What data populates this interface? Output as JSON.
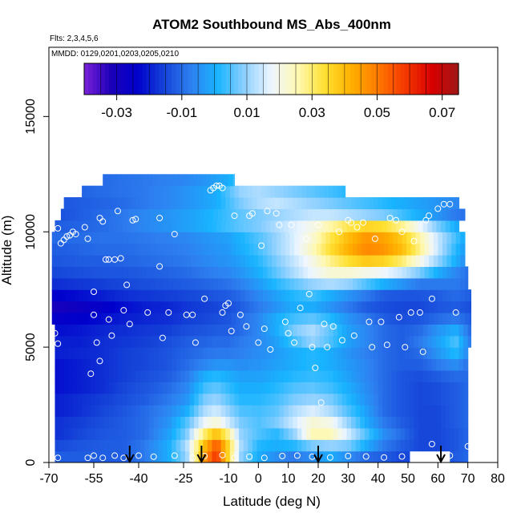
{
  "chart_data": {
    "type": "heatmap",
    "title": "ATOM2 Southbound MS_Abs_400nm",
    "flights_label": "Flts: 2,3,4,5,6",
    "dates_label": "MMDD: 0129,0201,0203,0205,0210",
    "xlabel": "Latitude (deg N)",
    "ylabel": "Altitude (m)",
    "xlim": [
      -70,
      80
    ],
    "ylim": [
      0,
      18000
    ],
    "x_ticks": [
      -70,
      -55,
      -40,
      -25,
      -10,
      0,
      10,
      20,
      30,
      40,
      50,
      60,
      70,
      80
    ],
    "y_ticks": [
      0,
      5000,
      10000,
      15000
    ],
    "colorbar": {
      "range": [
        -0.04,
        0.075
      ],
      "ticks": [
        -0.03,
        -0.01,
        0.01,
        0.03,
        0.05,
        0.07
      ],
      "tick_labels": [
        "-0.03",
        "-0.01",
        "0.01",
        "0.03",
        "0.05",
        "0.07"
      ],
      "colors": [
        "#7b22d8",
        "#1c00b8",
        "#0000cc",
        "#1544d8",
        "#2e80f0",
        "#18b4ff",
        "#8ed0ff",
        "#eef6ff",
        "#fff8b0",
        "#ffe030",
        "#ffb000",
        "#ff7800",
        "#f53800",
        "#d80000",
        "#a01818"
      ]
    },
    "field": {
      "lat": [
        -68,
        -60,
        -52,
        -45,
        -38,
        -30,
        -24,
        -18,
        -14,
        -10,
        -6,
        0,
        6,
        12,
        18,
        24,
        30,
        36,
        42,
        48,
        54,
        60,
        66,
        71
      ],
      "alt": [
        250,
        750,
        1250,
        1750,
        2250,
        2750,
        3250,
        3750,
        4250,
        4750,
        5250,
        5750,
        6250,
        6750,
        7250,
        7750,
        8250,
        8750,
        9250,
        9750,
        10250,
        10750,
        11250,
        11750,
        12250
      ],
      "rows": [
        [
          -0.012,
          -0.012,
          -0.012,
          -0.012,
          -0.008,
          0.0,
          0.01,
          0.045,
          0.06,
          0.035,
          0.01,
          0.0,
          -0.005,
          -0.008,
          -0.005,
          0.0,
          -0.005,
          -0.01,
          -0.012,
          -0.015,
          -0.015,
          -0.015,
          -0.012,
          -0.01
        ],
        [
          -0.015,
          -0.013,
          -0.012,
          -0.012,
          -0.008,
          0.0,
          0.012,
          0.04,
          0.055,
          0.035,
          0.012,
          0.002,
          0.0,
          0.002,
          0.008,
          0.01,
          0.008,
          0.0,
          -0.008,
          -0.012,
          -0.015,
          -0.015,
          -0.013,
          -0.01
        ],
        [
          -0.018,
          -0.015,
          -0.013,
          -0.012,
          -0.01,
          -0.002,
          0.008,
          0.03,
          0.04,
          0.028,
          0.01,
          0.005,
          0.002,
          0.01,
          0.025,
          0.025,
          0.015,
          0.005,
          -0.005,
          -0.01,
          -0.015,
          -0.015,
          -0.013,
          -0.01
        ],
        [
          -0.018,
          -0.016,
          -0.014,
          -0.012,
          -0.01,
          -0.004,
          0.005,
          0.018,
          0.022,
          0.015,
          0.008,
          0.005,
          0.008,
          0.015,
          0.022,
          0.02,
          0.01,
          0.0,
          -0.008,
          -0.012,
          -0.015,
          -0.015,
          -0.012,
          -0.01
        ],
        [
          -0.02,
          -0.018,
          -0.015,
          -0.013,
          -0.01,
          -0.006,
          0.0,
          0.012,
          0.015,
          0.01,
          0.005,
          0.004,
          0.006,
          0.012,
          0.016,
          0.012,
          0.005,
          -0.002,
          -0.01,
          -0.013,
          -0.015,
          -0.015,
          -0.012,
          -0.01
        ],
        [
          -0.02,
          -0.018,
          -0.016,
          -0.014,
          -0.012,
          -0.008,
          -0.004,
          0.008,
          0.01,
          0.006,
          0.002,
          0.002,
          0.004,
          0.008,
          0.01,
          0.008,
          0.002,
          -0.004,
          -0.01,
          -0.013,
          -0.015,
          -0.014,
          -0.012,
          -0.01
        ],
        [
          -0.022,
          -0.02,
          -0.018,
          -0.015,
          -0.013,
          -0.01,
          -0.006,
          0.004,
          0.006,
          0.003,
          0.0,
          0.0,
          0.002,
          0.005,
          0.006,
          0.004,
          0.0,
          -0.005,
          -0.01,
          -0.013,
          -0.015,
          -0.014,
          -0.012,
          -0.01
        ],
        [
          -0.022,
          -0.02,
          -0.018,
          -0.016,
          -0.014,
          -0.012,
          -0.008,
          0.0,
          0.002,
          0.0,
          -0.002,
          -0.002,
          0.0,
          0.002,
          0.003,
          0.002,
          -0.002,
          -0.006,
          -0.01,
          -0.013,
          -0.014,
          -0.012,
          -0.01,
          -0.01
        ],
        [
          -0.022,
          -0.02,
          -0.018,
          -0.016,
          -0.015,
          -0.013,
          -0.01,
          -0.006,
          -0.004,
          -0.004,
          -0.005,
          -0.004,
          -0.002,
          0.0,
          0.002,
          0.0,
          -0.003,
          -0.006,
          -0.01,
          -0.012,
          -0.012,
          -0.008,
          -0.005,
          -0.01
        ],
        [
          -0.02,
          -0.019,
          -0.018,
          -0.016,
          -0.015,
          -0.013,
          -0.011,
          -0.009,
          -0.008,
          -0.008,
          -0.007,
          -0.005,
          -0.003,
          0.0,
          0.002,
          0.0,
          -0.004,
          -0.007,
          -0.01,
          -0.012,
          -0.01,
          -0.004,
          0.002,
          -0.008
        ],
        [
          -0.02,
          -0.02,
          -0.018,
          -0.017,
          -0.016,
          -0.014,
          -0.012,
          -0.011,
          -0.01,
          -0.01,
          -0.008,
          -0.006,
          -0.002,
          0.004,
          0.01,
          0.005,
          -0.002,
          -0.006,
          -0.01,
          -0.012,
          -0.008,
          -0.002,
          0.005,
          -0.008
        ],
        [
          -0.022,
          -0.021,
          -0.019,
          -0.018,
          -0.017,
          -0.016,
          -0.014,
          -0.013,
          -0.012,
          -0.012,
          -0.01,
          -0.006,
          0.0,
          0.008,
          0.012,
          0.006,
          -0.002,
          -0.006,
          -0.01,
          -0.012,
          -0.01,
          -0.004,
          0.0,
          -0.01
        ],
        [
          -0.025,
          -0.024,
          -0.022,
          -0.02,
          -0.019,
          -0.018,
          -0.016,
          -0.015,
          -0.014,
          -0.013,
          -0.01,
          -0.006,
          0.0,
          0.004,
          0.006,
          0.002,
          -0.004,
          -0.008,
          -0.012,
          -0.014,
          -0.013,
          -0.01,
          -0.008,
          -0.012
        ],
        [
          -0.03,
          -0.028,
          -0.025,
          -0.022,
          -0.02,
          -0.019,
          -0.017,
          -0.016,
          -0.015,
          -0.014,
          -0.012,
          -0.008,
          -0.004,
          0.0,
          0.0,
          -0.004,
          -0.008,
          -0.012,
          -0.014,
          -0.015,
          -0.015,
          -0.013,
          -0.012,
          -0.014
        ],
        [
          -0.024,
          -0.022,
          -0.02,
          -0.018,
          -0.017,
          -0.016,
          -0.015,
          -0.014,
          -0.013,
          -0.012,
          -0.01,
          -0.006,
          -0.002,
          0.002,
          0.004,
          0.0,
          -0.004,
          -0.008,
          -0.012,
          -0.013,
          -0.013,
          -0.012,
          -0.01,
          -0.012
        ],
        [
          -0.018,
          -0.017,
          -0.016,
          -0.015,
          -0.014,
          -0.013,
          -0.012,
          -0.011,
          -0.01,
          -0.009,
          -0.007,
          -0.003,
          0.002,
          0.006,
          0.01,
          0.012,
          0.01,
          0.005,
          0.0,
          -0.004,
          -0.008,
          -0.008,
          -0.008,
          -0.01
        ],
        [
          -0.015,
          -0.014,
          -0.013,
          -0.013,
          -0.012,
          -0.011,
          -0.01,
          -0.008,
          -0.007,
          -0.006,
          -0.004,
          0.0,
          0.006,
          0.012,
          0.018,
          0.022,
          0.022,
          0.02,
          0.018,
          0.014,
          0.008,
          0.0,
          -0.006,
          -0.01
        ],
        [
          -0.013,
          -0.012,
          -0.012,
          -0.011,
          -0.01,
          -0.009,
          -0.008,
          -0.006,
          -0.005,
          -0.004,
          -0.002,
          0.002,
          0.008,
          0.014,
          0.02,
          0.028,
          0.034,
          0.038,
          0.036,
          0.03,
          0.02,
          0.01,
          0.0,
          -0.008
        ],
        [
          -0.012,
          -0.011,
          -0.01,
          -0.01,
          -0.009,
          -0.008,
          -0.007,
          -0.005,
          -0.004,
          -0.003,
          0.0,
          0.004,
          0.01,
          0.016,
          0.024,
          0.034,
          0.042,
          0.048,
          0.046,
          0.04,
          0.028,
          0.014,
          0.002,
          -0.006
        ],
        [
          -0.01,
          -0.01,
          -0.009,
          -0.009,
          -0.008,
          -0.007,
          -0.006,
          -0.004,
          -0.003,
          -0.002,
          0.001,
          0.005,
          0.01,
          0.016,
          0.022,
          0.032,
          0.04,
          0.046,
          0.044,
          0.038,
          0.026,
          0.014,
          0.004,
          -0.004
        ],
        [
          -0.012,
          -0.011,
          -0.01,
          -0.008,
          -0.006,
          -0.004,
          -0.002,
          0.0,
          0.002,
          0.004,
          0.006,
          0.008,
          0.012,
          0.016,
          0.02,
          0.026,
          0.032,
          0.036,
          0.034,
          0.028,
          0.018,
          0.008,
          0.0,
          -0.006
        ],
        [
          -0.014,
          -0.012,
          -0.01,
          -0.008,
          -0.006,
          -0.004,
          -0.002,
          0.0,
          0.002,
          0.004,
          0.006,
          0.008,
          0.01,
          0.012,
          0.014,
          0.014,
          0.012,
          0.01,
          0.008,
          0.004,
          0.0,
          -0.004,
          -0.008,
          -0.01
        ],
        [
          -0.013,
          -0.012,
          -0.011,
          -0.01,
          -0.008,
          -0.006,
          -0.004,
          -0.002,
          0.0,
          0.004,
          0.008,
          0.012,
          0.014,
          0.012,
          0.01,
          0.008,
          0.006,
          0.004,
          0.002,
          0.0,
          -0.002,
          -0.004,
          -0.006,
          -0.008
        ],
        [
          -0.012,
          -0.011,
          -0.01,
          -0.009,
          -0.008,
          -0.006,
          -0.004,
          -0.002,
          0.0,
          0.005,
          0.01,
          0.012,
          0.01,
          0.008,
          0.006,
          0.004,
          0.002,
          0.0,
          -0.002,
          -0.004,
          -0.006,
          -0.008,
          -0.01,
          -0.012
        ],
        [
          -0.012,
          -0.011,
          -0.01,
          -0.009,
          -0.008,
          -0.007,
          -0.006,
          -0.004,
          -0.002,
          0.0,
          0.006,
          0.01,
          0.008,
          0.006,
          0.004,
          0.002,
          0.0,
          -0.002,
          -0.004,
          -0.006,
          -0.008,
          -0.01,
          -0.012,
          -0.012
        ]
      ],
      "coverage": [
        [
          -68,
          70
        ],
        [
          -68,
          70
        ],
        [
          -68,
          70
        ],
        [
          -68,
          70
        ],
        [
          -68,
          70
        ],
        [
          -68,
          70
        ],
        [
          -68,
          70
        ],
        [
          -68,
          70
        ],
        [
          -68,
          70
        ],
        [
          -68,
          70
        ],
        [
          -68,
          71
        ],
        [
          -68,
          71
        ],
        [
          -69,
          71
        ],
        [
          -69,
          71
        ],
        [
          -69,
          71
        ],
        [
          -69,
          70
        ],
        [
          -69,
          70
        ],
        [
          -69,
          69
        ],
        [
          -69,
          69
        ],
        [
          -69,
          69
        ],
        [
          -68,
          67
        ],
        [
          -66,
          69
        ],
        [
          -65,
          67
        ],
        [
          -59,
          29
        ],
        [
          -52,
          -8
        ]
      ],
      "low_gap_lat": [
        50,
        64
      ],
      "low_gap_alt": [
        0,
        400
      ]
    },
    "sample_points": [
      [
        -68,
        5600
      ],
      [
        -67,
        5150
      ],
      [
        -66,
        9500
      ],
      [
        -65,
        9650
      ],
      [
        -64,
        9800
      ],
      [
        -63,
        9850
      ],
      [
        -62,
        10000
      ],
      [
        -61,
        9900
      ],
      [
        -67,
        10150
      ],
      [
        -58,
        10200
      ],
      [
        -57,
        9700
      ],
      [
        -56,
        3850
      ],
      [
        -55,
        6400
      ],
      [
        -55,
        7400
      ],
      [
        -54,
        5200
      ],
      [
        -53,
        4400
      ],
      [
        -53,
        10600
      ],
      [
        -52,
        10450
      ],
      [
        -51,
        8800
      ],
      [
        -50,
        6200
      ],
      [
        -50,
        8800
      ],
      [
        -49,
        5500
      ],
      [
        -48,
        8800
      ],
      [
        -47,
        10900
      ],
      [
        -46,
        8850
      ],
      [
        -45,
        6600
      ],
      [
        -44,
        7700
      ],
      [
        -43,
        6000
      ],
      [
        -42,
        10500
      ],
      [
        -41,
        10550
      ],
      [
        -37,
        6500
      ],
      [
        -33,
        10600
      ],
      [
        -33,
        8500
      ],
      [
        -32,
        5400
      ],
      [
        -30,
        6500
      ],
      [
        -28,
        9900
      ],
      [
        -24,
        6400
      ],
      [
        -22,
        6400
      ],
      [
        -21,
        5200
      ],
      [
        -18,
        7100
      ],
      [
        -16,
        11800
      ],
      [
        -15,
        11900
      ],
      [
        -14,
        12000
      ],
      [
        -13,
        12000
      ],
      [
        -12,
        11900
      ],
      [
        -12,
        6500
      ],
      [
        -11,
        6800
      ],
      [
        -10,
        6900
      ],
      [
        -9,
        5700
      ],
      [
        -8,
        10700
      ],
      [
        -6,
        6400
      ],
      [
        -4,
        5900
      ],
      [
        -3,
        10700
      ],
      [
        -2,
        10800
      ],
      [
        0,
        5200
      ],
      [
        1,
        9400
      ],
      [
        2,
        5800
      ],
      [
        3,
        10900
      ],
      [
        4,
        4900
      ],
      [
        6,
        10800
      ],
      [
        7,
        10300
      ],
      [
        9,
        6100
      ],
      [
        10,
        5600
      ],
      [
        11,
        10300
      ],
      [
        12,
        5200
      ],
      [
        14,
        6700
      ],
      [
        16,
        9700
      ],
      [
        17,
        7300
      ],
      [
        18,
        5000
      ],
      [
        19,
        4100
      ],
      [
        20,
        10300
      ],
      [
        21,
        2600
      ],
      [
        22,
        6000
      ],
      [
        23,
        5000
      ],
      [
        25,
        5900
      ],
      [
        27,
        10000
      ],
      [
        28,
        5300
      ],
      [
        30,
        10500
      ],
      [
        31,
        10400
      ],
      [
        32,
        5500
      ],
      [
        33,
        10200
      ],
      [
        35,
        10400
      ],
      [
        37,
        6100
      ],
      [
        38,
        5000
      ],
      [
        39,
        9700
      ],
      [
        41,
        6100
      ],
      [
        43,
        5100
      ],
      [
        44,
        10600
      ],
      [
        46,
        10500
      ],
      [
        47,
        6300
      ],
      [
        48,
        10000
      ],
      [
        49,
        5000
      ],
      [
        51,
        6500
      ],
      [
        52,
        9600
      ],
      [
        54,
        6500
      ],
      [
        55,
        4800
      ],
      [
        56,
        10500
      ],
      [
        57,
        10700
      ],
      [
        58,
        7100
      ],
      [
        60,
        11000
      ],
      [
        62,
        11200
      ],
      [
        64,
        11200
      ],
      [
        66,
        6500
      ],
      [
        -67,
        200
      ],
      [
        -57,
        200
      ],
      [
        -55,
        300
      ],
      [
        -52,
        200
      ],
      [
        -48,
        300
      ],
      [
        -45,
        200
      ],
      [
        -40,
        300
      ],
      [
        -35,
        250
      ],
      [
        -28,
        300
      ],
      [
        -22,
        200
      ],
      [
        -18,
        280
      ],
      [
        -12,
        320
      ],
      [
        -8,
        200
      ],
      [
        -3,
        250
      ],
      [
        2,
        200
      ],
      [
        8,
        280
      ],
      [
        13,
        300
      ],
      [
        18,
        250
      ],
      [
        24,
        220
      ],
      [
        30,
        280
      ],
      [
        36,
        260
      ],
      [
        42,
        220
      ],
      [
        48,
        260
      ],
      [
        54,
        300
      ],
      [
        58,
        800
      ],
      [
        64,
        300
      ],
      [
        70,
        700
      ]
    ],
    "arrow_lats": [
      -43,
      -19,
      20,
      61
    ]
  }
}
